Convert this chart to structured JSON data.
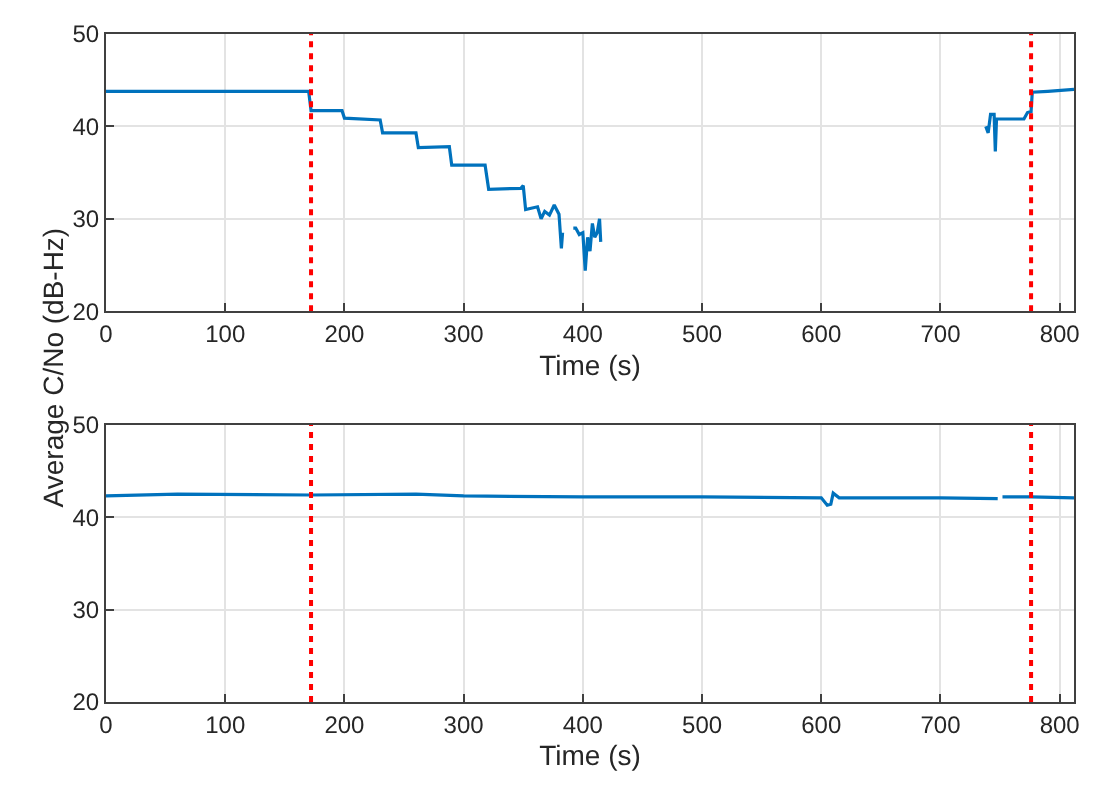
{
  "chart_data": [
    {
      "type": "line",
      "xlabel": "Time (s)",
      "ylabel": "Average C/No (dB-Hz)",
      "xlim": [
        0,
        812
      ],
      "xticks": [
        0,
        100,
        200,
        300,
        400,
        500,
        600,
        700,
        800
      ],
      "ylim": [
        20,
        50
      ],
      "yticks": [
        20,
        30,
        40,
        50
      ],
      "grid": true,
      "series": [
        {
          "color": "#0072bd",
          "x": [
            0,
            170,
            172,
            198,
            200,
            230,
            232,
            260,
            262,
            288,
            290,
            318,
            321,
            348,
            350,
            352,
            362,
            365,
            368,
            372,
            376,
            380,
            382,
            383,
            388,
            392,
            394,
            397,
            400,
            402,
            404,
            406,
            408,
            410,
            412,
            414,
            415,
            500,
            738,
            740,
            742,
            745,
            746,
            747,
            770,
            773,
            776,
            777,
            790,
            812
          ],
          "values": [
            43.8,
            43.8,
            41.7,
            41.7,
            40.9,
            40.7,
            39.3,
            39.3,
            37.7,
            37.8,
            35.8,
            35.8,
            33.2,
            33.3,
            33.6,
            31.0,
            31.3,
            30.0,
            30.8,
            30.4,
            31.5,
            30.5,
            26.8,
            28.5,
            null,
            29.0,
            29.0,
            28.3,
            28.5,
            24.4,
            28.0,
            26.5,
            29.5,
            28.0,
            28.5,
            30.0,
            27.5,
            null,
            40.0,
            39.3,
            41.3,
            41.3,
            37.3,
            40.8,
            40.8,
            41.5,
            41.6,
            43.7,
            43.8,
            44.0
          ]
        }
      ],
      "ref_lines": [
        {
          "axis": "x",
          "value": 172,
          "color": "#ff0000",
          "line_style": "dotted"
        },
        {
          "axis": "x",
          "value": 776,
          "color": "#ff0000",
          "line_style": "dotted"
        }
      ]
    },
    {
      "type": "line",
      "xlabel": "Time (s)",
      "xlim": [
        0,
        812
      ],
      "xticks": [
        0,
        100,
        200,
        300,
        400,
        500,
        600,
        700,
        800
      ],
      "ylim": [
        20,
        50
      ],
      "yticks": [
        20,
        30,
        40,
        50
      ],
      "grid": true,
      "series": [
        {
          "color": "#0072bd",
          "x": [
            0,
            60,
            172,
            260,
            300,
            400,
            500,
            600,
            605,
            608,
            610,
            615,
            700,
            748,
            750,
            752,
            776,
            812
          ],
          "values": [
            42.3,
            42.5,
            42.4,
            42.5,
            42.3,
            42.2,
            42.2,
            42.1,
            41.3,
            41.4,
            42.6,
            42.1,
            42.1,
            42.0,
            null,
            42.2,
            42.2,
            42.1
          ]
        }
      ],
      "ref_lines": [
        {
          "axis": "x",
          "value": 172,
          "color": "#ff0000",
          "line_style": "dotted"
        },
        {
          "axis": "x",
          "value": 776,
          "color": "#ff0000",
          "line_style": "dotted"
        }
      ]
    }
  ]
}
